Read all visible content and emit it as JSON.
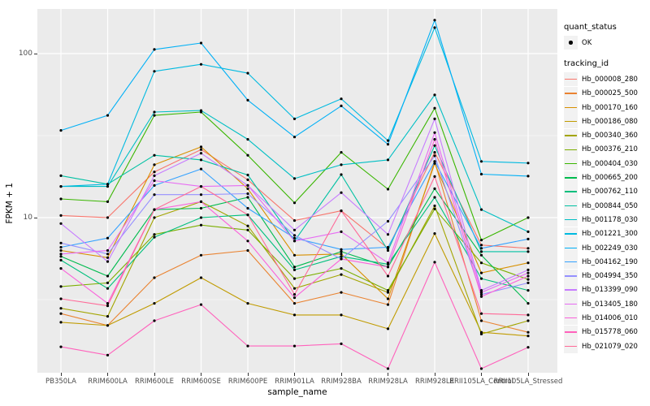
{
  "figure": {
    "y_axis": {
      "title": "FPKM + 1",
      "ticks": [
        {
          "label": "100",
          "value": 100
        },
        {
          "label": "10",
          "value": 10
        }
      ]
    },
    "x_axis": {
      "title": "sample_name"
    },
    "legend": {
      "quant_status": {
        "title": "quant_status",
        "items": [
          {
            "label": "OK"
          }
        ]
      },
      "tracking_id": {
        "title": "tracking_id"
      }
    },
    "colors": {
      "panel_bg": "#EBEBEB",
      "grid": "#FFFFFF",
      "tick_text": "#4D4D4D",
      "point": "#000000",
      "legend_key_bg": "#F2F2F2"
    }
  },
  "chart_data": {
    "type": "line",
    "title": "",
    "xlabel": "sample_name",
    "ylabel": "FPKM + 1",
    "y_scale": "log10",
    "ylim": [
      1.1,
      200
    ],
    "y_major_breaks": [
      10,
      100
    ],
    "y_minor_breaks": [
      3.162,
      31.62
    ],
    "grid": "white major and minor on grey panel",
    "legend_position": "right",
    "point_marker": "black dot (quant_status OK)",
    "categories": [
      "PB350LA",
      "RRIM600LA",
      "RRIM600LE",
      "RRIM600SE",
      "RRIM600PE",
      "RRIM901LA",
      "RRIM928BA",
      "RRIM928LA",
      "RRIM928LE",
      "RRII105LA_Control",
      "RRII105LA_Stressed"
    ],
    "series": [
      {
        "name": "Hb_000008_280",
        "color": "#F8766D",
        "values": [
          10.3,
          10,
          19,
          26,
          17,
          9.6,
          11,
          6.5,
          25,
          6.8,
          6.5
        ]
      },
      {
        "name": "Hb_000025_500",
        "color": "#EA8331",
        "values": [
          2.6,
          2.2,
          4.3,
          5.9,
          6.3,
          3.0,
          3.5,
          2.95,
          22,
          2.35,
          2.0
        ]
      },
      {
        "name": "Hb_000170_160",
        "color": "#D89000",
        "values": [
          6.3,
          5.7,
          21,
          27,
          15,
          5.9,
          6.0,
          3.2,
          21.4,
          4.6,
          5.3
        ]
      },
      {
        "name": "Hb_000186_080",
        "color": "#C09B00",
        "values": [
          2.3,
          2.2,
          3.0,
          4.3,
          3.0,
          2.55,
          2.55,
          2.1,
          8.0,
          2.0,
          1.9
        ]
      },
      {
        "name": "Hb_000340_360",
        "color": "#A3A500",
        "values": [
          2.8,
          2.5,
          10,
          12.5,
          8.9,
          3.7,
          4.5,
          3.5,
          11.8,
          1.95,
          2.35
        ]
      },
      {
        "name": "Hb_000376_210",
        "color": "#7CAE00",
        "values": [
          3.8,
          4.0,
          7.9,
          9.0,
          8.4,
          4.25,
          4.9,
          3.6,
          11.3,
          5.3,
          4.2
        ]
      },
      {
        "name": "Hb_000404_030",
        "color": "#39B600",
        "values": [
          13,
          12.5,
          42,
          44,
          24,
          12.3,
          25,
          14.9,
          46.5,
          7.3,
          10
        ]
      },
      {
        "name": "Hb_000665_200",
        "color": "#00BB4E",
        "values": [
          5.8,
          4.4,
          11.2,
          11.4,
          13.3,
          5.0,
          6.2,
          5.0,
          15,
          5.9,
          3.0
        ]
      },
      {
        "name": "Hb_000762_110",
        "color": "#00BF7D",
        "values": [
          5.5,
          3.7,
          7.6,
          10,
          10.4,
          4.8,
          5.8,
          5.2,
          13.3,
          4.25,
          3.6
        ]
      },
      {
        "name": "Hb_000844_050",
        "color": "#00C1A3",
        "values": [
          18,
          16,
          24,
          22.5,
          18.2,
          7.2,
          18.3,
          6.3,
          27.5,
          6.2,
          6.2
        ]
      },
      {
        "name": "Hb_001178_030",
        "color": "#00BFC4",
        "values": [
          15.5,
          15.5,
          44,
          45,
          30,
          17.3,
          21,
          22.5,
          56,
          11.2,
          8.2
        ]
      },
      {
        "name": "Hb_001221_300",
        "color": "#00BAE0",
        "values": [
          15.5,
          16,
          78,
          86,
          76,
          40,
          53,
          29.5,
          144,
          22,
          21.5
        ]
      },
      {
        "name": "Hb_002249_030",
        "color": "#00B0F6",
        "values": [
          34,
          42,
          106,
          116,
          52,
          31,
          48,
          28,
          160,
          18.4,
          17.9
        ]
      },
      {
        "name": "Hb_004162_190",
        "color": "#35A2FF",
        "values": [
          6.6,
          7.5,
          15.7,
          19.8,
          11.4,
          7.5,
          6.4,
          6.6,
          22,
          6.5,
          7.4
        ]
      },
      {
        "name": "Hb_004994_350",
        "color": "#9590FF",
        "values": [
          7.0,
          6.0,
          13.8,
          13.8,
          14,
          7.8,
          5.6,
          9.5,
          23.8,
          3.4,
          4.0
        ]
      },
      {
        "name": "Hb_013399_090",
        "color": "#C77CFF",
        "values": [
          9.2,
          5.4,
          18,
          24.7,
          15.7,
          8.4,
          14.2,
          7.9,
          40,
          3.6,
          4.8
        ]
      },
      {
        "name": "Hb_013405_180",
        "color": "#E76BF3",
        "values": [
          6.0,
          6.3,
          16.8,
          15.5,
          15.7,
          7.2,
          8.2,
          5.3,
          33,
          3.5,
          4.6
        ]
      },
      {
        "name": "Hb_014006_010",
        "color": "#FA62DB",
        "values": [
          4.9,
          3.0,
          11.2,
          12.5,
          7.2,
          3.25,
          5.6,
          5.0,
          30,
          3.3,
          4.4
        ]
      },
      {
        "name": "Hb_015778_060",
        "color": "#FF62BC",
        "values": [
          1.63,
          1.45,
          2.35,
          2.95,
          1.65,
          1.65,
          1.7,
          1.2,
          5.35,
          1.2,
          1.62
        ]
      },
      {
        "name": "Hb_021079_020",
        "color": "#FF6A98",
        "values": [
          3.2,
          2.9,
          11.2,
          15.5,
          10.4,
          3.4,
          11.0,
          4.4,
          17.8,
          2.6,
          2.55
        ]
      }
    ]
  }
}
